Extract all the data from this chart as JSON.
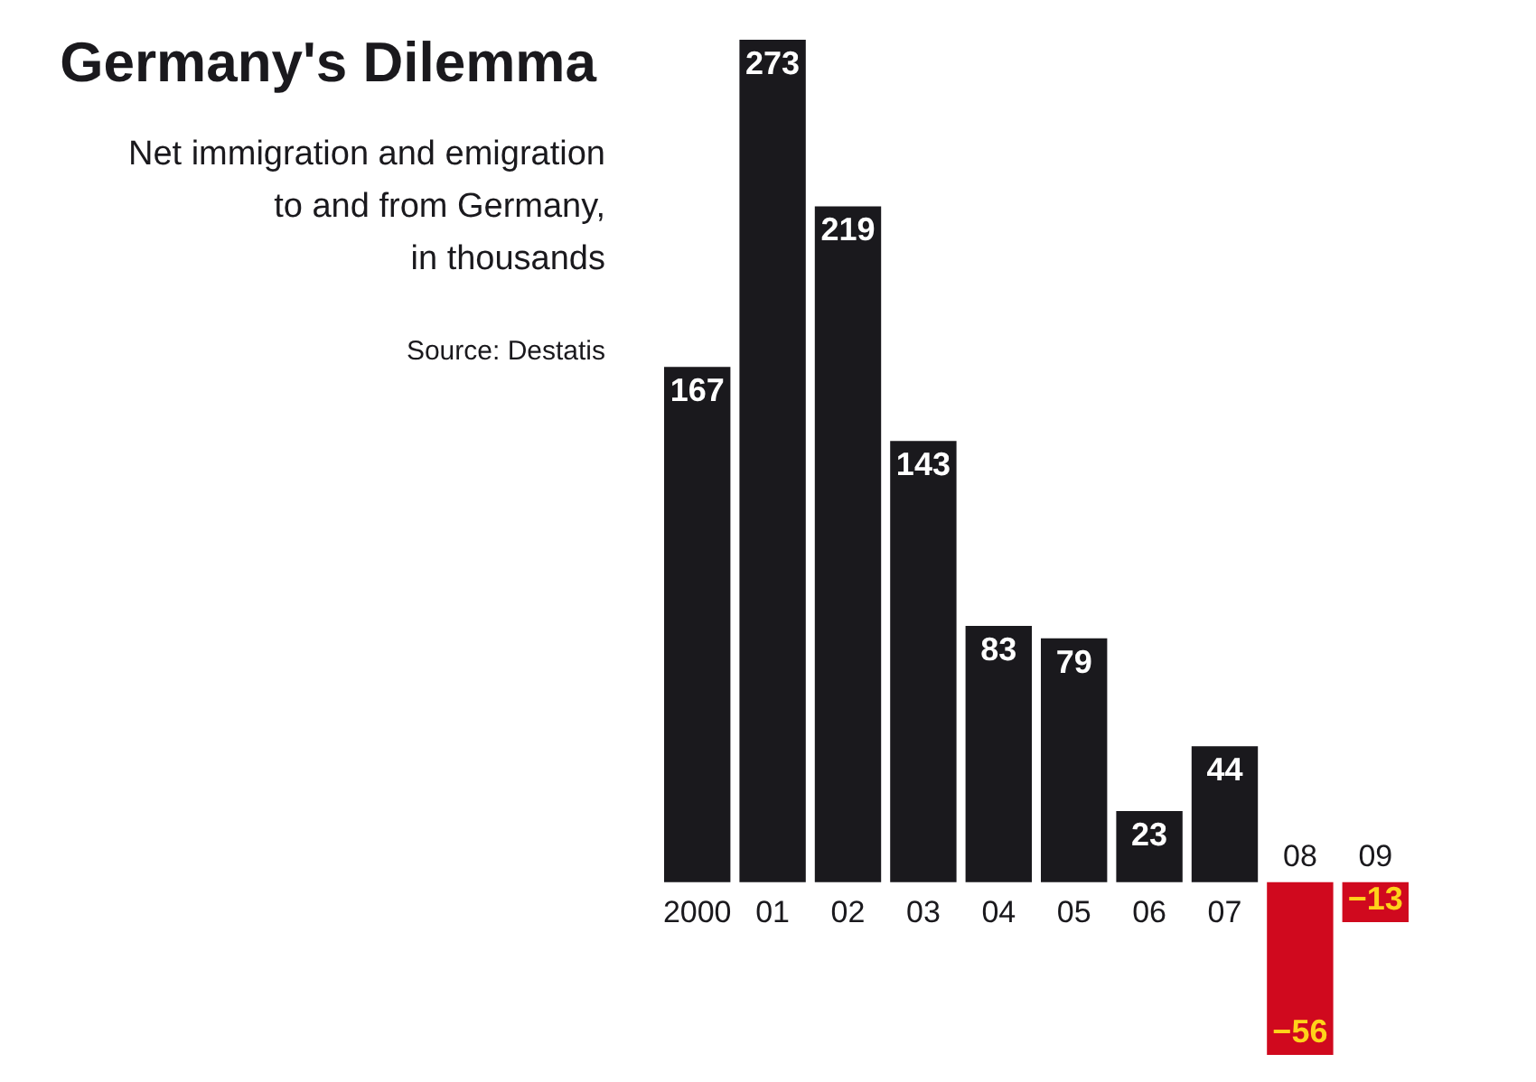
{
  "chart_data": {
    "type": "bar",
    "title": "Germany's Dilemma",
    "subtitle": "Net immigration and emigration\nto and from Germany,\nin thousands",
    "annotations": [
      "Source: Destatis"
    ],
    "categories": [
      "2000",
      "01",
      "02",
      "03",
      "04",
      "05",
      "06",
      "07",
      "08",
      "09"
    ],
    "values": [
      167,
      273,
      219,
      143,
      83,
      79,
      23,
      44,
      -56,
      -13
    ],
    "colors": [
      "#1a191d",
      "#1a191d",
      "#1a191d",
      "#1a191d",
      "#1a191d",
      "#1a191d",
      "#1a191d",
      "#1a191d",
      "#d0091e",
      "#d0091e"
    ],
    "data_labels": true,
    "tick_labels": "x"
  }
}
